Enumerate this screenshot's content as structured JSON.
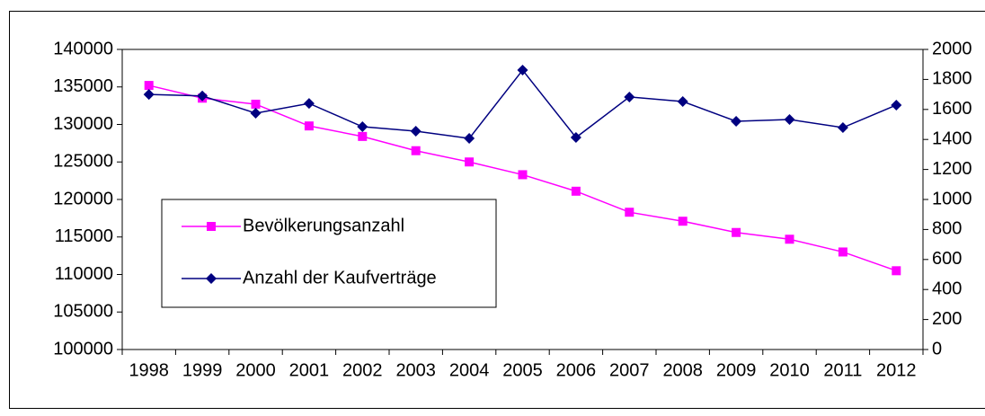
{
  "chart_data": {
    "type": "line",
    "categories": [
      "1998",
      "1999",
      "2000",
      "2001",
      "2002",
      "2003",
      "2004",
      "2005",
      "2006",
      "2007",
      "2008",
      "2009",
      "2010",
      "2011",
      "2012"
    ],
    "series": [
      {
        "name": "Bevölkerungsanzahl",
        "color": "#ff00ff",
        "marker": "square",
        "values": [
          135200,
          133500,
          132700,
          129800,
          128400,
          126500,
          125000,
          123300,
          121100,
          118300,
          117100,
          115600,
          114700,
          113000,
          110500
        ]
      },
      {
        "name": "Anzahl der Kaufverträge",
        "color": "#000080",
        "marker": "diamond",
        "axis": "y2",
        "values": [
          1700,
          1690,
          1575,
          1640,
          1485,
          1455,
          1407,
          1862,
          1413,
          1683,
          1653,
          1521,
          1533,
          1479,
          1629
        ]
      }
    ],
    "ylim": [
      100000,
      140000
    ],
    "yticks": [
      100000,
      105000,
      110000,
      115000,
      120000,
      125000,
      130000,
      135000,
      140000
    ],
    "y2lim": [
      0,
      2000
    ],
    "y2ticks": [
      0,
      200,
      400,
      600,
      800,
      1000,
      1200,
      1400,
      1600,
      1800,
      2000
    ],
    "legend": "left"
  }
}
